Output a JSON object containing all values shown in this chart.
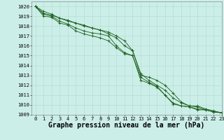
{
  "background_color": "#cceee8",
  "grid_color": "#aaddcc",
  "line_color": "#1a5c1a",
  "marker_color": "#1a5c1a",
  "xlabel": "Graphe pression niveau de la mer (hPa)",
  "xlabel_fontsize": 7,
  "tick_fontsize": 5,
  "ylim": [
    1009,
    1020.5
  ],
  "xlim": [
    -0.5,
    23
  ],
  "yticks": [
    1009,
    1010,
    1011,
    1012,
    1013,
    1014,
    1015,
    1016,
    1017,
    1018,
    1019,
    1020
  ],
  "xticks": [
    0,
    1,
    2,
    3,
    4,
    5,
    6,
    7,
    8,
    9,
    10,
    11,
    12,
    13,
    14,
    15,
    16,
    17,
    18,
    19,
    20,
    21,
    22,
    23
  ],
  "series": [
    [
      1020.0,
      1019.2,
      1019.0,
      1018.5,
      1018.2,
      1017.8,
      1017.5,
      1017.3,
      1017.2,
      1017.0,
      1016.0,
      1015.3,
      1015.0,
      1012.5,
      1012.2,
      1011.8,
      1011.0,
      1010.1,
      1009.9,
      1009.8,
      1009.6,
      1009.5,
      1009.3,
      1009.2
    ],
    [
      1020.0,
      1019.3,
      1019.1,
      1018.8,
      1018.5,
      1018.3,
      1018.0,
      1017.8,
      1017.6,
      1017.2,
      1016.8,
      1016.0,
      1015.5,
      1013.2,
      1012.5,
      1012.0,
      1011.5,
      1010.7,
      1010.2,
      1009.9,
      1009.8,
      1009.5,
      1009.3,
      1009.2
    ],
    [
      1020.0,
      1019.5,
      1019.2,
      1018.8,
      1018.6,
      1018.3,
      1018.1,
      1017.8,
      1017.6,
      1017.4,
      1017.0,
      1016.5,
      1015.5,
      1013.0,
      1012.8,
      1012.5,
      1012.0,
      1011.2,
      1010.3,
      1009.9,
      1009.9,
      1009.6,
      1009.4,
      1009.2
    ],
    [
      1020.0,
      1019.0,
      1018.9,
      1018.3,
      1018.1,
      1017.5,
      1017.2,
      1017.0,
      1016.8,
      1016.5,
      1015.8,
      1015.2,
      1015.0,
      1012.8,
      1012.3,
      1011.9,
      1011.0,
      1010.2,
      1009.9,
      1009.8,
      1009.5,
      1009.5,
      1009.3,
      1009.2
    ]
  ]
}
